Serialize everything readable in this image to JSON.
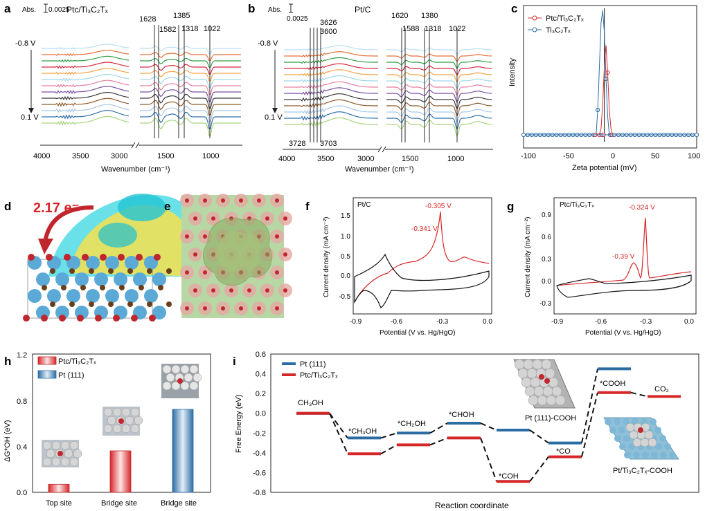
{
  "figure": {
    "panel_labels": [
      "a",
      "b",
      "c",
      "d",
      "e",
      "f",
      "g",
      "h",
      "i"
    ],
    "abs_label": "Abs.",
    "abs_scale": "0.0025",
    "wavenumber_label": "Wavenumber (cm⁻¹)",
    "v_top": "-0.8 V",
    "v_bottom": "0.1 V",
    "palette": [
      "#b9dff0",
      "#e36f3a",
      "#2f9e44",
      "#d7263d",
      "#f2a341",
      "#9fd7e8",
      "#e67f9d",
      "#7a4fa1",
      "#3a3a3a",
      "#8c5a2b",
      "#a8c6e6",
      "#2f6faa",
      "#a6d57a"
    ]
  },
  "panel_a": {
    "title": "Ptc/Ti₃C₂Tₓ",
    "peaks": [
      "1628",
      "1582",
      "1385",
      "1318",
      "1022"
    ],
    "x_ticks": [
      "4000",
      "3500",
      "3000",
      "1500",
      "1000"
    ]
  },
  "panel_b": {
    "title": "Pt/C",
    "peaks_top": [
      "3626",
      "3600",
      "1620",
      "1588",
      "1380",
      "1318",
      "1022"
    ],
    "peaks_bottom": [
      "3728",
      "3703"
    ],
    "x_ticks": [
      "4000",
      "3500",
      "3000",
      "1500",
      "1000"
    ]
  },
  "panel_c": {
    "ylabel": "Intensity",
    "xlabel": "Zeta potential (mV)",
    "x_ticks": [
      "-100",
      "-50",
      "0",
      "50",
      "100"
    ],
    "legend": [
      "Ptc/Ti₃C₂Tₓ",
      "Ti₃C₂Tₓ"
    ],
    "colors": [
      "#d62728",
      "#2b6ca3"
    ]
  },
  "panel_d": {
    "charge": "2.17 e⁻"
  },
  "panel_f": {
    "tag": "Pt/C",
    "peak1": "-0.305 V",
    "peak2": "-0.341 V",
    "ylabel": "Current density (mA cm⁻²)",
    "xlabel": "Potential (V vs. Hg/HgO)",
    "y_ticks": [
      "1.5",
      "1.0",
      "0.5",
      "0.0",
      "-0.5"
    ],
    "x_ticks": [
      "-0.9",
      "-0.6",
      "-0.3",
      "0.0"
    ]
  },
  "panel_g": {
    "tag": "Ptc/Ti₃C₂Tₓ",
    "peak1": "-0.324 V",
    "peak2": "-0.39 V",
    "ylabel": "Current density (mA cm⁻²)",
    "xlabel": "Potential (V vs. Hg/HgO)",
    "y_ticks": [
      "0.9",
      "0.6",
      "0.3",
      "0.0",
      "-0.3"
    ],
    "x_ticks": [
      "-0.9",
      "-0.6",
      "-0.3",
      "0.0"
    ]
  },
  "panel_h": {
    "ylabel": "ΔG*OH (eV)",
    "y_ticks": [
      "1.2",
      "0.8",
      "0.4",
      "0.0"
    ],
    "legend": [
      "Ptc/Ti₃C₂Tₓ",
      "Pt (111)"
    ],
    "categories": [
      "Top site",
      "Bridge site",
      "Bridge site"
    ]
  },
  "panel_i": {
    "ylabel": "Free Energy (eV)",
    "xlabel": "Reaction coordinate",
    "y_ticks": [
      "0.6",
      "0.4",
      "0.2",
      "0.0",
      "-0.2",
      "-0.4",
      "-0.6",
      "-0.8"
    ],
    "legend": [
      "Pt (111)",
      "Ptc/Ti₃C₂Tₓ"
    ],
    "labels": [
      "CH₃OH",
      "*CH₃OH",
      "*CH₂OH",
      "*CHOH",
      "*COH",
      "*CO",
      "*COOH",
      "CO₂"
    ],
    "struct1": "Pt (111)-COOH",
    "struct2": "Pt/Ti₃C₂Tₓ-COOH"
  },
  "chart_data": [
    {
      "panel": "c",
      "type": "scatter",
      "xlabel": "Zeta potential (mV)",
      "ylabel": "Intensity",
      "xlim": [
        -110,
        100
      ],
      "series": [
        {
          "name": "Ptc/Ti₃C₂Tₓ",
          "x": [
            -20,
            -18,
            -16,
            -14,
            -12,
            -10,
            -8,
            -6,
            -4
          ],
          "y": [
            0.0,
            0.05,
            0.25,
            0.55,
            0.72,
            0.5,
            0.2,
            0.05,
            0.0
          ]
        },
        {
          "name": "Ti₃C₂Tₓ",
          "x": [
            -22,
            -20,
            -18,
            -16,
            -14,
            -12,
            -10,
            -8,
            -6
          ],
          "y": [
            0.0,
            0.2,
            0.55,
            0.9,
            1.0,
            0.82,
            0.45,
            0.15,
            0.0
          ]
        }
      ]
    },
    {
      "panel": "h",
      "type": "bar",
      "ylabel": "ΔG*OH (eV)",
      "ylim": [
        0,
        1.2
      ],
      "categories": [
        "Top site",
        "Bridge site",
        "Bridge site"
      ],
      "series": [
        {
          "name": "Ptc/Ti₃C₂Tₓ",
          "values": [
            0.07,
            0.36,
            null
          ]
        },
        {
          "name": "Pt (111)",
          "values": [
            null,
            null,
            0.72
          ]
        }
      ]
    },
    {
      "panel": "i",
      "type": "line",
      "ylabel": "Free Energy (eV)",
      "xlabel": "Reaction coordinate",
      "ylim": [
        -0.8,
        0.6
      ],
      "states": [
        "CH₃OH",
        "*CH₃OH",
        "*CH₂OH",
        "*CHOH",
        "*COH",
        "*CO",
        "*COOH",
        "CO₂"
      ],
      "series": [
        {
          "name": "Pt (111)",
          "values": [
            0.0,
            -0.25,
            -0.2,
            -0.1,
            -0.17,
            -0.3,
            0.45,
            null
          ]
        },
        {
          "name": "Ptc/Ti₃C₂Tₓ",
          "values": [
            0.0,
            -0.41,
            -0.32,
            -0.25,
            -0.69,
            -0.44,
            0.21,
            0.17
          ]
        }
      ]
    }
  ]
}
